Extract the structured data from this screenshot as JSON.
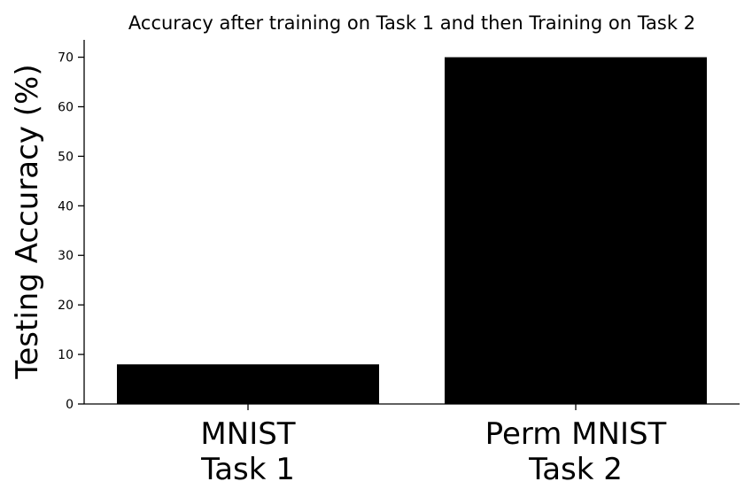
{
  "chart_data": {
    "type": "bar",
    "title": "Accuracy after training on Task 1 and then Training on Task 2",
    "ylabel": "Testing Accuracy (%)",
    "xlabel": "",
    "categories": [
      [
        "MNIST",
        "Task 1"
      ],
      [
        "Perm MNIST",
        "Task 2"
      ]
    ],
    "values": [
      8,
      70
    ],
    "ylim": [
      0,
      73.5
    ],
    "yticks": [
      0,
      10,
      20,
      30,
      40,
      50,
      60,
      70
    ],
    "bar_color": "#000000",
    "grid": false,
    "spines": [
      "left",
      "bottom"
    ]
  }
}
